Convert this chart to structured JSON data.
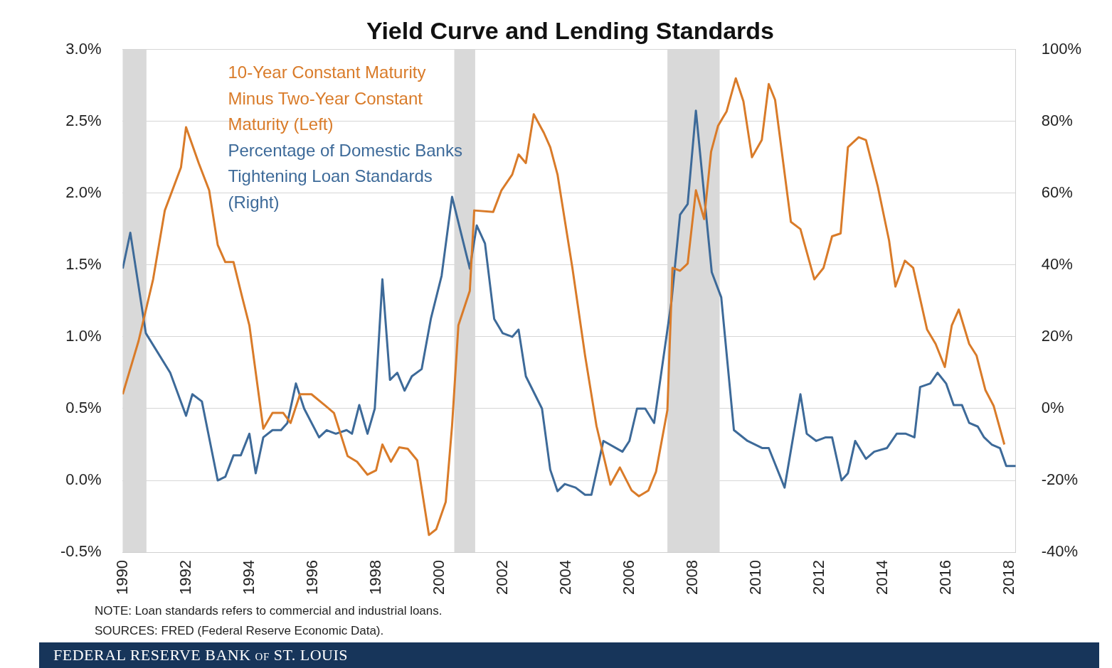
{
  "chart_data": {
    "type": "line",
    "title": "Yield Curve and Lending Standards",
    "annotations": [
      "NOTE: Loan standards refers to commercial and industrial loans.",
      "SOURCES: FRED (Federal Reserve Economic Data).",
      "FEDERAL RESERVE BANK of ST. LOUIS"
    ],
    "series": [
      {
        "name": "10-Year Constant Maturity Minus Two-Year Constant Maturity (Left)",
        "color": "#d97b29",
        "x": [
          1990.0,
          1990.5,
          1990.96,
          1991.33,
          1991.84,
          1992.0,
          1992.4,
          1992.73,
          1993.0,
          1993.24,
          1993.5,
          1993.78,
          1994.0,
          1994.44,
          1994.73,
          1995.07,
          1995.3,
          1995.6,
          1995.96,
          1996.4,
          1996.67,
          1997.1,
          1997.4,
          1997.73,
          1998.0,
          1998.2,
          1998.47,
          1998.73,
          1999.0,
          1999.3,
          1999.67,
          1999.9,
          2000.2,
          2000.4,
          2000.6,
          2000.96,
          2001.1,
          2001.7,
          2001.96,
          2002.3,
          2002.5,
          2002.73,
          2002.98,
          2003.3,
          2003.5,
          2003.73,
          2004.2,
          2004.6,
          2004.96,
          2005.4,
          2005.7,
          2006.07,
          2006.3,
          2006.6,
          2006.84,
          2007.2,
          2007.36,
          2007.6,
          2007.84,
          2008.1,
          2008.36,
          2008.58,
          2008.8,
          2009.07,
          2009.36,
          2009.6,
          2009.87,
          2010.18,
          2010.4,
          2010.6,
          2011.1,
          2011.4,
          2011.84,
          2012.13,
          2012.4,
          2012.67,
          2012.9,
          2013.24,
          2013.47,
          2013.84,
          2014.2,
          2014.4,
          2014.7,
          2014.96,
          2015.4,
          2015.67,
          2015.96,
          2016.18,
          2016.4,
          2016.73,
          2016.96,
          2017.24,
          2017.5,
          2017.84
        ],
        "values": [
          0.6,
          0.97,
          1.4,
          1.88,
          2.18,
          2.46,
          2.21,
          2.02,
          1.64,
          1.52,
          1.52,
          1.27,
          1.08,
          0.36,
          0.47,
          0.47,
          0.4,
          0.6,
          0.6,
          0.52,
          0.47,
          0.17,
          0.13,
          0.04,
          0.07,
          0.25,
          0.13,
          0.23,
          0.22,
          0.14,
          -0.38,
          -0.34,
          -0.15,
          0.38,
          1.08,
          1.32,
          1.88,
          1.87,
          2.02,
          2.13,
          2.27,
          2.21,
          2.55,
          2.42,
          2.32,
          2.13,
          1.48,
          0.87,
          0.38,
          -0.03,
          0.09,
          -0.07,
          -0.11,
          -0.07,
          0.06,
          0.49,
          1.48,
          1.46,
          1.51,
          2.02,
          1.82,
          2.29,
          2.47,
          2.57,
          2.8,
          2.64,
          2.25,
          2.37,
          2.76,
          2.65,
          1.8,
          1.75,
          1.4,
          1.48,
          1.7,
          1.72,
          2.32,
          2.39,
          2.37,
          2.05,
          1.67,
          1.35,
          1.53,
          1.48,
          1.05,
          0.95,
          0.79,
          1.08,
          1.19,
          0.95,
          0.87,
          0.63,
          0.52,
          0.25
        ]
      },
      {
        "name": "Percentage of Domestic Banks Tightening Loan Standards (Right)",
        "color": "#3d6a99",
        "axis": "y2",
        "x": [
          1990.0,
          1990.24,
          1990.73,
          1991.5,
          1992.0,
          1992.2,
          1992.5,
          1993.0,
          1993.24,
          1993.5,
          1993.73,
          1994.0,
          1994.2,
          1994.44,
          1994.73,
          1995.0,
          1995.2,
          1995.47,
          1995.73,
          1996.2,
          1996.44,
          1996.73,
          1997.07,
          1997.24,
          1997.47,
          1997.73,
          1997.96,
          1998.2,
          1998.44,
          1998.67,
          1998.9,
          1999.13,
          1999.44,
          1999.73,
          2000.07,
          2000.4,
          2000.96,
          2001.18,
          2001.44,
          2001.73,
          2002.0,
          2002.3,
          2002.5,
          2002.73,
          2003.24,
          2003.5,
          2003.73,
          2003.96,
          2004.3,
          2004.6,
          2004.8,
          2005.18,
          2005.78,
          2006.0,
          2006.24,
          2006.5,
          2006.78,
          2007.33,
          2007.6,
          2007.84,
          2008.1,
          2008.6,
          2008.9,
          2009.3,
          2009.73,
          2010.2,
          2010.4,
          2010.9,
          2011.4,
          2011.6,
          2011.9,
          2012.2,
          2012.4,
          2012.7,
          2012.9,
          2013.13,
          2013.47,
          2013.73,
          2014.13,
          2014.44,
          2014.73,
          2015.0,
          2015.18,
          2015.5,
          2015.73,
          2016.0,
          2016.24,
          2016.5,
          2016.73,
          2017.0,
          2017.2,
          2017.44,
          2017.7,
          2017.9,
          2018.2
        ],
        "values": [
          39,
          49,
          21,
          10,
          -2,
          4,
          2,
          -20,
          -19,
          -13,
          -13,
          -7,
          -18,
          -8,
          -6,
          -6,
          -4,
          7,
          0,
          -8,
          -6,
          -7,
          -6,
          -7,
          1,
          -7,
          0,
          36,
          8,
          10,
          5,
          9,
          11,
          25,
          37,
          59,
          39,
          51,
          46,
          25,
          21,
          20,
          22,
          9,
          0,
          -17,
          -23,
          -21,
          -22,
          -24,
          -24,
          -9,
          -12,
          -9,
          0,
          0,
          -4,
          30,
          54,
          57,
          83,
          38,
          31,
          -6,
          -9,
          -11,
          -11,
          -22,
          4,
          -7,
          -9,
          -8,
          -8,
          -20,
          -18,
          -9,
          -14,
          -12,
          -11,
          -7,
          -7,
          -8,
          6,
          7,
          10,
          7,
          1,
          1,
          -4,
          -5,
          -8,
          -10,
          -11,
          -16,
          -16
        ]
      }
    ],
    "xlim": [
      1990,
      2018.2
    ],
    "xticks": [
      1990,
      1992,
      1994,
      1996,
      1998,
      2000,
      2002,
      2004,
      2006,
      2008,
      2010,
      2012,
      2014,
      2016,
      2018
    ],
    "ylim": [
      -0.5,
      3.0
    ],
    "yticks": [
      {
        "value": -0.5,
        "label": "-0.5%"
      },
      {
        "value": 0,
        "label": "0.0%"
      },
      {
        "value": 0.5,
        "label": "0.5%"
      },
      {
        "value": 1,
        "label": "1.0%"
      },
      {
        "value": 1.5,
        "label": "1.5%"
      },
      {
        "value": 2,
        "label": "2.0%"
      },
      {
        "value": 2.5,
        "label": "2.5%"
      },
      {
        "value": 3,
        "label": "3.0%"
      }
    ],
    "y2lim": [
      -40,
      100
    ],
    "y2ticks": [
      {
        "value": -40,
        "label": "-40%"
      },
      {
        "value": -20,
        "label": "-20%"
      },
      {
        "value": 0,
        "label": "0%"
      },
      {
        "value": 20,
        "label": "20%"
      },
      {
        "value": 40,
        "label": "40%"
      },
      {
        "value": 60,
        "label": "60%"
      },
      {
        "value": 80,
        "label": "80%"
      },
      {
        "value": 100,
        "label": "100%"
      }
    ],
    "bands": [
      {
        "axis": "x",
        "from": 1990.0,
        "to": 1990.75,
        "color": "#d9d9d9"
      },
      {
        "axis": "x",
        "from": 2000.47,
        "to": 2001.13,
        "color": "#d9d9d9"
      },
      {
        "axis": "x",
        "from": 2007.2,
        "to": 2008.85,
        "color": "#d9d9d9"
      }
    ],
    "grid": "y",
    "legend": "top left",
    "marker": "none",
    "line_style": "solid"
  }
}
